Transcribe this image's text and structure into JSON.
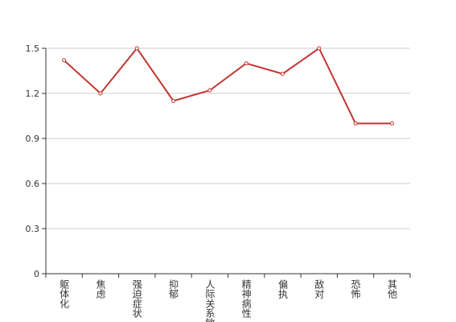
{
  "chart_data": {
    "type": "line",
    "categories": [
      "躯体化",
      "焦虑",
      "强迫症状",
      "抑郁",
      "人际关系敏",
      "精神病性",
      "偏执",
      "敌对",
      "恐怖",
      "其他"
    ],
    "values": [
      1.42,
      1.2,
      1.5,
      1.15,
      1.22,
      1.4,
      1.33,
      1.5,
      1.0,
      1.0
    ],
    "color": "#c23531",
    "ylim": [
      0,
      1.5
    ],
    "yticks": [
      0,
      0.3,
      0.6,
      0.9,
      1.2,
      1.5
    ],
    "grid": true
  }
}
